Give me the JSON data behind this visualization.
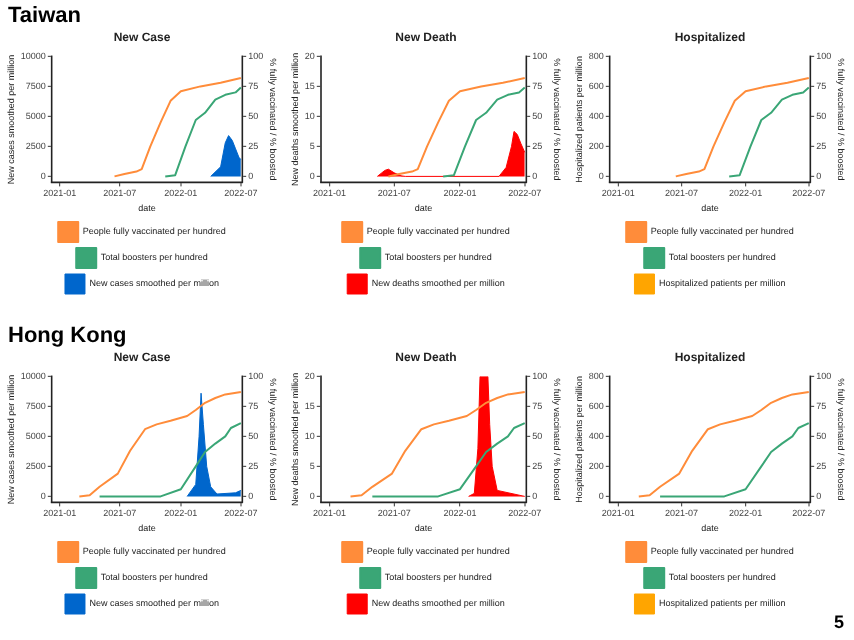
{
  "chart_data": [
    {
      "type": "line",
      "title": "New Case",
      "annotations": [
        "Taiwan"
      ],
      "xlabel": "date",
      "ylabel": "New cases smoothed per million",
      "y2label": "% fully vaccinated / % boosted",
      "xlim": [
        "2020-12-08",
        "2022-07-05"
      ],
      "xticks": [
        "2021-01",
        "2021-07",
        "2022-01",
        "2022-07"
      ],
      "ylim": [
        -500,
        10000
      ],
      "yticks": [
        0,
        2500,
        5000,
        7500,
        10000
      ],
      "y2lim": [
        -5,
        100
      ],
      "y2ticks": [
        0,
        25,
        50,
        75,
        100
      ],
      "legend": "bottom",
      "series": [
        {
          "name": "People fully vaccinated per hundred",
          "axis": "y2",
          "color": "#ff8c3a",
          "x": [
            "2021-06-15",
            "2021-07-15",
            "2021-08-20",
            "2021-09-05",
            "2021-10-01",
            "2021-11-01",
            "2021-12-01",
            "2022-01-01",
            "2022-03-01",
            "2022-05-01",
            "2022-07-01"
          ],
          "values": [
            0,
            2,
            4,
            6,
            25,
            45,
            63,
            71,
            75,
            78,
            82
          ]
        },
        {
          "name": "Total boosters per hundred",
          "axis": "y2",
          "color": "#3aa676",
          "x": [
            "2021-11-15",
            "2021-12-15",
            "2022-01-15",
            "2022-02-15",
            "2022-03-15",
            "2022-04-15",
            "2022-05-15",
            "2022-06-15",
            "2022-07-01"
          ],
          "values": [
            0,
            1,
            25,
            47,
            53,
            64,
            68,
            70,
            74
          ]
        },
        {
          "name": "New cases smoothed per million",
          "type": "area",
          "axis": "y",
          "color": "#0066cc",
          "x": [
            "2022-04-01",
            "2022-05-01",
            "2022-05-15",
            "2022-05-25",
            "2022-06-05",
            "2022-06-15",
            "2022-06-25",
            "2022-07-01"
          ],
          "values": [
            0,
            800,
            2800,
            3400,
            3000,
            2300,
            1600,
            1400
          ]
        }
      ]
    },
    {
      "type": "line",
      "title": "New Death",
      "xlabel": "date",
      "ylabel": "New deaths smoothed per million",
      "y2label": "% fully vaccinated / % boosted",
      "xlim": [
        "2020-12-08",
        "2022-07-05"
      ],
      "xticks": [
        "2021-01",
        "2021-07",
        "2022-01",
        "2022-07"
      ],
      "ylim": [
        -1,
        20
      ],
      "yticks": [
        0,
        5,
        10,
        15,
        20
      ],
      "y2lim": [
        -5,
        100
      ],
      "y2ticks": [
        0,
        25,
        50,
        75,
        100
      ],
      "legend": "bottom",
      "series": [
        {
          "name": "People fully vaccinated per hundred",
          "axis": "y2",
          "color": "#ff8c3a",
          "x": [
            "2021-06-15",
            "2021-07-15",
            "2021-08-20",
            "2021-09-05",
            "2021-10-01",
            "2021-11-01",
            "2021-12-01",
            "2022-01-01",
            "2022-03-01",
            "2022-05-01",
            "2022-07-01"
          ],
          "values": [
            0,
            2,
            4,
            6,
            25,
            45,
            63,
            71,
            75,
            78,
            82
          ]
        },
        {
          "name": "Total boosters per hundred",
          "axis": "y2",
          "color": "#3aa676",
          "x": [
            "2021-11-15",
            "2021-12-15",
            "2022-01-15",
            "2022-02-15",
            "2022-03-15",
            "2022-04-15",
            "2022-05-15",
            "2022-06-15",
            "2022-07-01"
          ],
          "values": [
            0,
            1,
            25,
            47,
            53,
            64,
            68,
            70,
            74
          ]
        },
        {
          "name": "New deaths smoothed per million",
          "type": "area",
          "axis": "y",
          "color": "#ff0000",
          "x": [
            "2021-05-15",
            "2021-06-05",
            "2021-06-15",
            "2021-07-01",
            "2021-07-20",
            "2021-08-01",
            "2022-04-20",
            "2022-05-10",
            "2022-05-25",
            "2022-06-01",
            "2022-06-10",
            "2022-06-20",
            "2022-07-01"
          ],
          "values": [
            0,
            1,
            1.2,
            0.6,
            0.1,
            0,
            0,
            1.5,
            5,
            7.5,
            7,
            5.5,
            4
          ]
        }
      ]
    },
    {
      "type": "line",
      "title": "Hospitalized",
      "xlabel": "date",
      "ylabel": "Hospitalized patients per million",
      "y2label": "% fully vaccinated / % boosted",
      "xlim": [
        "2020-12-08",
        "2022-07-05"
      ],
      "xticks": [
        "2021-01",
        "2021-07",
        "2022-01",
        "2022-07"
      ],
      "ylim": [
        -40,
        800
      ],
      "yticks": [
        0,
        200,
        400,
        600,
        800
      ],
      "y2lim": [
        -5,
        100
      ],
      "y2ticks": [
        0,
        25,
        50,
        75,
        100
      ],
      "legend": "bottom",
      "series": [
        {
          "name": "People fully vaccinated per hundred",
          "axis": "y2",
          "color": "#ff8c3a",
          "x": [
            "2021-06-15",
            "2021-07-15",
            "2021-08-20",
            "2021-09-05",
            "2021-10-01",
            "2021-11-01",
            "2021-12-01",
            "2022-01-01",
            "2022-03-01",
            "2022-05-01",
            "2022-07-01"
          ],
          "values": [
            0,
            2,
            4,
            6,
            25,
            45,
            63,
            71,
            75,
            78,
            82
          ]
        },
        {
          "name": "Total boosters per hundred",
          "axis": "y2",
          "color": "#3aa676",
          "x": [
            "2021-11-15",
            "2021-12-15",
            "2022-01-15",
            "2022-02-15",
            "2022-03-15",
            "2022-04-15",
            "2022-05-15",
            "2022-06-15",
            "2022-07-01"
          ],
          "values": [
            0,
            1,
            25,
            47,
            53,
            64,
            68,
            70,
            74
          ]
        },
        {
          "name": "Hospitalized patients per million",
          "type": "area",
          "axis": "y",
          "color": "#ffa500"
        }
      ]
    },
    {
      "type": "line",
      "title": "New Case",
      "annotations": [
        "Hong Kong"
      ],
      "xlabel": "date",
      "ylabel": "New cases smoothed per million",
      "y2label": "% fully vaccinated / % boosted",
      "xlim": [
        "2020-12-08",
        "2022-07-05"
      ],
      "xticks": [
        "2021-01",
        "2021-07",
        "2022-01",
        "2022-07"
      ],
      "ylim": [
        -500,
        10000
      ],
      "yticks": [
        0,
        2500,
        5000,
        7500,
        10000
      ],
      "y2lim": [
        -5,
        100
      ],
      "y2ticks": [
        0,
        25,
        50,
        75,
        100
      ],
      "legend": "bottom",
      "series": [
        {
          "name": "People fully vaccinated per hundred",
          "axis": "y2",
          "color": "#ff8c3a",
          "x": [
            "2021-03-01",
            "2021-04-01",
            "2021-05-01",
            "2021-06-25",
            "2021-08-01",
            "2021-09-15",
            "2021-10-20",
            "2021-12-01",
            "2022-01-20",
            "2022-02-15",
            "2022-03-15",
            "2022-04-15",
            "2022-05-15",
            "2022-07-01"
          ],
          "values": [
            0,
            1,
            8,
            19,
            38,
            56,
            60,
            63,
            67,
            72,
            78,
            82,
            85,
            87
          ]
        },
        {
          "name": "Total boosters per hundred",
          "axis": "y2",
          "color": "#3aa676",
          "x": [
            "2021-05-01",
            "2021-11-01",
            "2022-01-01",
            "2022-02-15",
            "2022-03-15",
            "2022-04-15",
            "2022-05-15",
            "2022-06-01",
            "2022-07-01"
          ],
          "values": [
            0,
            0,
            6,
            25,
            37,
            44,
            50,
            57,
            61
          ]
        },
        {
          "name": "New cases smoothed per million",
          "type": "area",
          "axis": "y",
          "color": "#0066cc",
          "x": [
            "2022-01-20",
            "2022-02-15",
            "2022-02-25",
            "2022-03-03",
            "2022-03-10",
            "2022-03-20",
            "2022-04-01",
            "2022-04-20",
            "2022-06-15",
            "2022-07-01"
          ],
          "values": [
            0,
            1000,
            5000,
            8600,
            6000,
            2500,
            800,
            200,
            300,
            500
          ]
        }
      ]
    },
    {
      "type": "line",
      "title": "New Death",
      "xlabel": "date",
      "ylabel": "New deaths smoothed per million",
      "y2label": "% fully vaccinated / % boosted",
      "xlim": [
        "2020-12-08",
        "2022-07-05"
      ],
      "xticks": [
        "2021-01",
        "2021-07",
        "2022-01",
        "2022-07"
      ],
      "ylim": [
        -1,
        20
      ],
      "yticks": [
        0,
        5,
        10,
        15,
        20
      ],
      "y2lim": [
        -5,
        100
      ],
      "y2ticks": [
        0,
        25,
        50,
        75,
        100
      ],
      "legend": "bottom",
      "series": [
        {
          "name": "People fully vaccinated per hundred",
          "axis": "y2",
          "color": "#ff8c3a",
          "x": [
            "2021-03-01",
            "2021-04-01",
            "2021-05-01",
            "2021-06-25",
            "2021-08-01",
            "2021-09-15",
            "2021-10-20",
            "2021-12-01",
            "2022-01-20",
            "2022-02-15",
            "2022-03-15",
            "2022-04-15",
            "2022-05-15",
            "2022-07-01"
          ],
          "values": [
            0,
            1,
            8,
            19,
            38,
            56,
            60,
            63,
            67,
            72,
            78,
            82,
            85,
            87
          ]
        },
        {
          "name": "Total boosters per hundred",
          "axis": "y2",
          "color": "#3aa676",
          "x": [
            "2021-05-01",
            "2021-11-01",
            "2022-01-01",
            "2022-02-15",
            "2022-03-15",
            "2022-04-15",
            "2022-05-15",
            "2022-06-01",
            "2022-07-01"
          ],
          "values": [
            0,
            0,
            6,
            25,
            37,
            44,
            50,
            57,
            61
          ]
        },
        {
          "name": "New deaths smoothed per million",
          "type": "area",
          "axis": "y",
          "color": "#ff0000",
          "x": [
            "2022-01-25",
            "2022-02-10",
            "2022-02-20",
            "2022-02-26",
            "2022-03-20",
            "2022-03-25",
            "2022-04-01",
            "2022-04-15",
            "2022-07-01"
          ],
          "values": [
            0,
            0.5,
            8,
            20,
            20,
            12,
            5,
            1,
            0
          ]
        }
      ]
    },
    {
      "type": "line",
      "title": "Hospitalized",
      "annotations": [
        "5"
      ],
      "xlabel": "date",
      "ylabel": "Hospitalized patients per million",
      "y2label": "% fully vaccinated / % boosted",
      "xlim": [
        "2020-12-08",
        "2022-07-05"
      ],
      "xticks": [
        "2021-01",
        "2021-07",
        "2022-01",
        "2022-07"
      ],
      "ylim": [
        -40,
        800
      ],
      "yticks": [
        0,
        200,
        400,
        600,
        800
      ],
      "y2lim": [
        -5,
        100
      ],
      "y2ticks": [
        0,
        25,
        50,
        75,
        100
      ],
      "legend": "bottom",
      "series": [
        {
          "name": "People fully vaccinated per hundred",
          "axis": "y2",
          "color": "#ff8c3a",
          "x": [
            "2021-03-01",
            "2021-04-01",
            "2021-05-01",
            "2021-06-25",
            "2021-08-01",
            "2021-09-15",
            "2021-10-20",
            "2021-12-01",
            "2022-01-20",
            "2022-02-15",
            "2022-03-15",
            "2022-04-15",
            "2022-05-15",
            "2022-07-01"
          ],
          "values": [
            0,
            1,
            8,
            19,
            38,
            56,
            60,
            63,
            67,
            72,
            78,
            82,
            85,
            87
          ]
        },
        {
          "name": "Total boosters per hundred",
          "axis": "y2",
          "color": "#3aa676",
          "x": [
            "2021-05-01",
            "2021-11-01",
            "2022-01-01",
            "2022-02-15",
            "2022-03-15",
            "2022-04-15",
            "2022-05-15",
            "2022-06-01",
            "2022-07-01"
          ],
          "values": [
            0,
            0,
            6,
            25,
            37,
            44,
            50,
            57,
            61
          ]
        },
        {
          "name": "Hospitalized patients per million",
          "type": "area",
          "axis": "y",
          "color": "#ffa500"
        }
      ]
    }
  ]
}
